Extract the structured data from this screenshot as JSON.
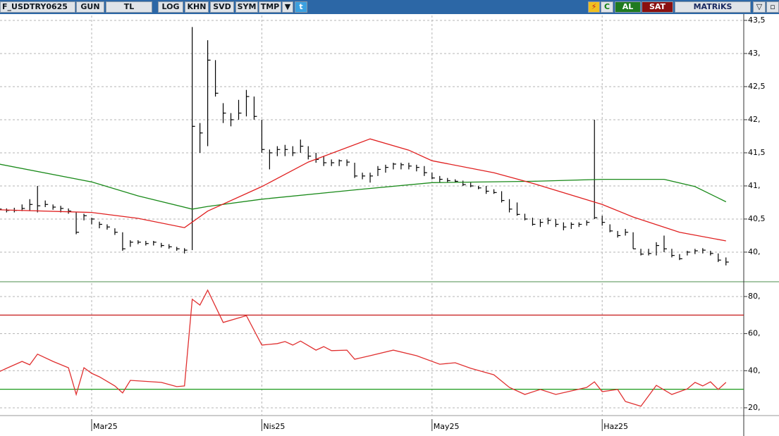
{
  "toolbar": {
    "symbol": "F_USDTRY0625",
    "buttons": [
      "GUN",
      "TL",
      "LOG",
      "KHN",
      "SVD",
      "SYM",
      "TMP"
    ],
    "right": [
      "C",
      "AL",
      "SAT"
    ],
    "brand": "MATRiKS"
  },
  "chart_data": [
    {
      "type": "ohlc",
      "color": "#000000",
      "xlim": [
        0.15,
        96.3
      ],
      "ylim": [
        39.574,
        43.574
      ],
      "yticks": [
        {
          "value": 40,
          "label": "40,"
        },
        {
          "value": 40.5,
          "label": "40,5"
        },
        {
          "value": 41,
          "label": "41,"
        },
        {
          "value": 41.5,
          "label": "41,5"
        },
        {
          "value": 42,
          "label": "42,"
        },
        {
          "value": 42.5,
          "label": "42,5"
        },
        {
          "value": 43,
          "label": "43,"
        },
        {
          "value": 43.5,
          "label": "43,5"
        }
      ],
      "grid": true,
      "x": [
        0,
        1,
        2,
        3,
        4,
        5,
        6,
        7,
        8,
        9,
        10,
        11,
        12,
        13,
        14,
        15,
        16,
        17,
        18,
        19,
        20,
        21,
        22,
        23,
        24,
        25,
        26,
        27,
        28,
        29,
        30,
        31,
        32,
        33,
        34,
        35,
        36,
        37,
        38,
        39,
        40,
        41,
        42,
        43,
        44,
        45,
        46,
        47,
        48,
        49,
        50,
        51,
        52,
        53,
        54,
        55,
        56,
        57,
        58,
        59,
        60,
        61,
        62,
        63,
        64,
        65,
        66,
        67,
        68,
        69,
        70,
        71,
        72,
        73,
        74,
        75,
        76,
        77,
        78,
        79,
        80,
        81,
        82,
        83,
        84,
        85,
        86,
        87,
        88,
        89,
        90,
        91,
        92,
        93,
        94
      ],
      "high": [
        40.68,
        40.66,
        40.67,
        40.72,
        40.8,
        41.0,
        40.78,
        40.72,
        40.7,
        40.66,
        40.6,
        40.58,
        40.52,
        40.46,
        40.42,
        40.36,
        40.3,
        40.18,
        40.18,
        40.17,
        40.17,
        40.14,
        40.12,
        40.08,
        40.06,
        43.4,
        41.95,
        43.2,
        42.9,
        42.25,
        42.1,
        42.3,
        42.45,
        42.35,
        42.0,
        41.55,
        41.6,
        41.62,
        41.6,
        41.7,
        41.6,
        41.5,
        41.45,
        41.4,
        41.4,
        41.4,
        41.35,
        41.2,
        41.2,
        41.3,
        41.32,
        41.35,
        41.35,
        41.35,
        41.32,
        41.3,
        41.2,
        41.15,
        41.12,
        41.1,
        41.08,
        41.05,
        41.0,
        41.0,
        40.95,
        40.92,
        40.8,
        40.75,
        40.58,
        40.52,
        40.5,
        40.52,
        40.5,
        40.45,
        40.45,
        40.45,
        40.48,
        42.0,
        40.55,
        40.42,
        40.32,
        40.35,
        40.3,
        40.05,
        40.05,
        40.15,
        40.25,
        40.05,
        39.97,
        40.02,
        40.05,
        40.06,
        40.02,
        39.98,
        39.92
      ],
      "low": [
        40.6,
        40.6,
        40.6,
        40.62,
        40.62,
        40.6,
        40.68,
        40.64,
        40.6,
        40.58,
        40.27,
        40.48,
        40.42,
        40.36,
        40.34,
        40.26,
        40.02,
        40.08,
        40.12,
        40.1,
        40.1,
        40.07,
        40.05,
        40.02,
        39.98,
        40.03,
        41.5,
        41.6,
        42.35,
        41.95,
        41.9,
        42.0,
        42.05,
        42.0,
        41.5,
        41.25,
        41.45,
        41.45,
        41.45,
        41.5,
        41.4,
        41.35,
        41.3,
        41.3,
        41.3,
        41.3,
        41.12,
        41.1,
        41.05,
        41.15,
        41.2,
        41.25,
        41.25,
        41.25,
        41.22,
        41.15,
        41.1,
        41.05,
        41.05,
        41.05,
        41.0,
        40.98,
        40.95,
        40.88,
        40.88,
        40.75,
        40.6,
        40.55,
        40.48,
        40.4,
        40.38,
        40.42,
        40.38,
        40.33,
        40.35,
        40.38,
        40.4,
        40.5,
        40.4,
        40.3,
        40.22,
        40.25,
        40.05,
        39.95,
        39.95,
        39.95,
        40.0,
        39.92,
        39.88,
        39.95,
        39.97,
        39.98,
        39.95,
        39.85,
        39.8
      ],
      "close": [
        40.65,
        40.63,
        40.63,
        40.66,
        40.72,
        40.7,
        40.72,
        40.68,
        40.66,
        40.62,
        40.3,
        40.55,
        40.5,
        40.42,
        40.38,
        40.3,
        40.05,
        40.15,
        40.15,
        40.13,
        40.15,
        40.1,
        40.08,
        40.05,
        40.03,
        41.9,
        41.8,
        42.9,
        42.4,
        42.1,
        42.0,
        42.1,
        42.35,
        42.05,
        41.55,
        41.5,
        41.55,
        41.55,
        41.5,
        41.6,
        41.45,
        41.4,
        41.35,
        41.35,
        41.38,
        41.36,
        41.15,
        41.15,
        41.15,
        41.25,
        41.28,
        41.33,
        41.32,
        41.3,
        41.28,
        41.2,
        41.12,
        41.1,
        41.08,
        41.07,
        41.02,
        41.0,
        40.97,
        40.92,
        40.9,
        40.78,
        40.65,
        40.57,
        40.5,
        40.42,
        40.45,
        40.48,
        40.42,
        40.38,
        40.42,
        40.42,
        40.45,
        40.52,
        40.45,
        40.32,
        40.25,
        40.3,
        40.05,
        39.97,
        39.98,
        40.1,
        40.05,
        39.95,
        39.9,
        40.0,
        40.02,
        40.03,
        39.98,
        39.88,
        39.85
      ],
      "lines": [
        {
          "color": "#1a8a1a",
          "x": [
            0,
            12,
            18,
            25,
            27,
            34,
            46,
            56,
            69,
            78,
            86,
            90,
            94
          ],
          "values": [
            41.33,
            41.06,
            40.85,
            40.65,
            40.69,
            40.8,
            40.94,
            41.05,
            41.07,
            41.1,
            41.1,
            40.99,
            40.76
          ]
        },
        {
          "color": "#e02020",
          "x": [
            0,
            12,
            18,
            24,
            27,
            34,
            40,
            48,
            53,
            56,
            64,
            69,
            78,
            82,
            88,
            94
          ],
          "values": [
            40.64,
            40.6,
            40.51,
            40.37,
            40.62,
            40.99,
            41.36,
            41.71,
            41.54,
            41.38,
            41.2,
            41.04,
            40.72,
            40.53,
            40.3,
            40.17
          ]
        }
      ]
    },
    {
      "type": "line",
      "color": "#e03030",
      "xlim": [
        0.15,
        96.3
      ],
      "ylim": [
        15.8,
        87.2
      ],
      "yticks": [
        {
          "value": 20,
          "label": "20,"
        },
        {
          "value": 40,
          "label": "40,"
        },
        {
          "value": 60,
          "label": "60,"
        },
        {
          "value": 80,
          "label": "80,"
        }
      ],
      "xticks": [
        {
          "value": 12,
          "label": "Mar25"
        },
        {
          "value": 34,
          "label": "Nis25"
        },
        {
          "value": 56,
          "label": "May25"
        },
        {
          "value": 78,
          "label": "Haz25"
        }
      ],
      "grid": true,
      "levels": [
        {
          "value": 70,
          "color": "#c00000"
        },
        {
          "value": 30,
          "color": "#1a9a1a"
        }
      ],
      "x": [
        0,
        1,
        3,
        4,
        5,
        7,
        9,
        10,
        11,
        12,
        13,
        15,
        16,
        17,
        21,
        23,
        24,
        25,
        26,
        27,
        29,
        32,
        34,
        36,
        37,
        38,
        39,
        41,
        42,
        43,
        45,
        46,
        48,
        51,
        54,
        57,
        59,
        61,
        64,
        66,
        68,
        70,
        72,
        76,
        77,
        78,
        80,
        81,
        83,
        85,
        87,
        89,
        90,
        91,
        92,
        93,
        94
      ],
      "values": [
        39.4,
        41.3,
        45,
        43.2,
        48.9,
        45,
        41.6,
        27.2,
        41.6,
        38.6,
        36.7,
        31.8,
        28,
        34.8,
        33.7,
        31.4,
        31.8,
        78.5,
        75.4,
        83.4,
        66,
        69.7,
        53.8,
        54.6,
        55.7,
        53.8,
        56,
        51.1,
        53,
        50.8,
        51.1,
        46.2,
        48.1,
        51.1,
        48.1,
        43.5,
        44.3,
        41.3,
        37.8,
        31,
        27.2,
        29.9,
        27.2,
        31,
        34,
        28.7,
        29.9,
        23.4,
        20.8,
        32.1,
        27.2,
        30.2,
        33.7,
        31.8,
        34,
        29.9,
        33.7
      ]
    }
  ]
}
